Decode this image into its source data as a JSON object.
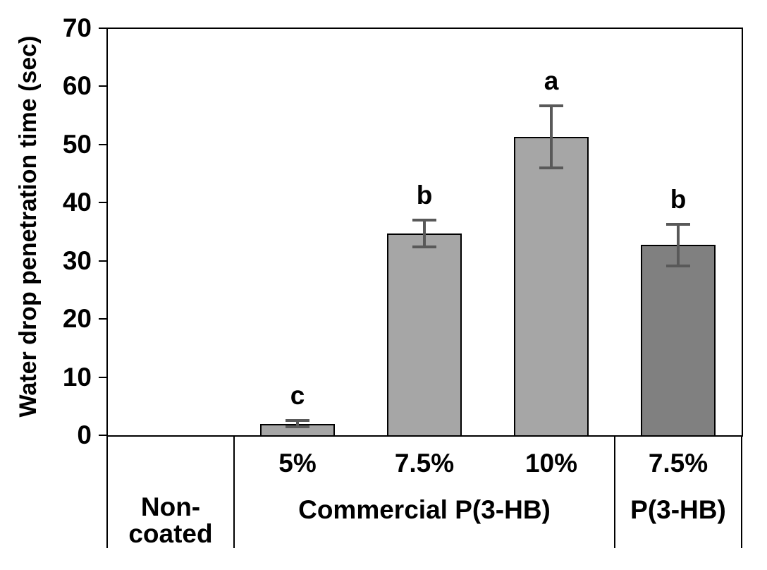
{
  "chart_data": {
    "type": "bar",
    "title": "",
    "ylabel": "Water drop penetration time (sec)",
    "xlabel": "",
    "ylim": [
      0,
      70
    ],
    "yticks": [
      0,
      10,
      20,
      30,
      40,
      50,
      60,
      70
    ],
    "grid": false,
    "legend": null,
    "categories": [
      "Non-coated",
      "Commercial P(3-HB) 5%",
      "Commercial P(3-HB) 7.5%",
      "Commercial P(3-HB) 10%",
      "P(3-HB) 7.5%"
    ],
    "bars": [
      {
        "tick_label": "",
        "value": 0,
        "error": 0,
        "letter": "",
        "fill": "#a6a6a6"
      },
      {
        "tick_label": "5%",
        "value": 2.0,
        "error": 0.5,
        "letter": "c",
        "fill": "#a6a6a6"
      },
      {
        "tick_label": "7.5%",
        "value": 34.7,
        "error": 2.3,
        "letter": "b",
        "fill": "#a6a6a6"
      },
      {
        "tick_label": "10%",
        "value": 51.3,
        "error": 5.3,
        "letter": "a",
        "fill": "#a6a6a6"
      },
      {
        "tick_label": "7.5%",
        "value": 32.7,
        "error": 3.6,
        "letter": "b",
        "fill": "#808080"
      }
    ],
    "groups": [
      {
        "label": "Non-coated",
        "lines": [
          "Non-",
          "coated"
        ],
        "start": 0,
        "span": 1
      },
      {
        "label": "Commercial P(3-HB)",
        "lines": [
          "Commercial P(3-HB)"
        ],
        "start": 1,
        "span": 3
      },
      {
        "label": "P(3-HB)",
        "lines": [
          "P(3-HB)"
        ],
        "start": 4,
        "span": 1
      }
    ],
    "colors": {
      "bar_light": "#a6a6a6",
      "bar_dark": "#808080",
      "error_bar": "#595959",
      "axis": "#000000",
      "background": "#ffffff"
    }
  }
}
